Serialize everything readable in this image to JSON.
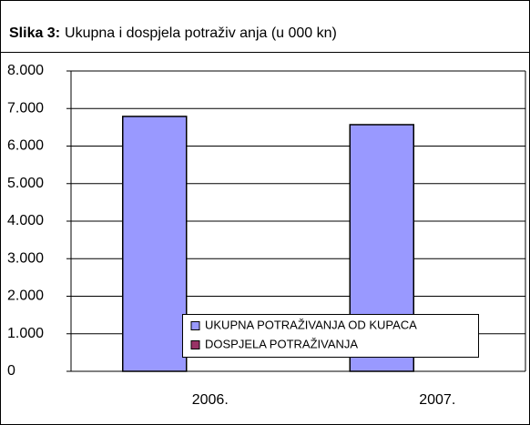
{
  "chart_data": {
    "type": "bar",
    "title_label": "Slika 3:",
    "title": "Ukupna i dospjela potraživ anja (u 000 kn)",
    "categories": [
      "2006.",
      "2007."
    ],
    "series": [
      {
        "name": "UKUPNA POTRAŽIVANJA OD KUPACA",
        "color": "#9999ff",
        "values": [
          6790,
          6570
        ]
      },
      {
        "name": "DOSPJELA POTRAŽIVANJA",
        "color": "#993366",
        "values": [
          0,
          0
        ]
      }
    ],
    "ylim": [
      0,
      8000
    ],
    "yticks": [
      0,
      {
        "value": 1000,
        "label": "1.000"
      },
      {
        "value": 2000,
        "label": "2.000"
      },
      {
        "value": 3000,
        "label": "3.000"
      },
      {
        "value": 4000,
        "label": "4.000"
      },
      {
        "value": 5000,
        "label": "5.000"
      },
      {
        "value": 6000,
        "label": "6.000"
      },
      {
        "value": 7000,
        "label": "7.000"
      },
      {
        "value": 8000,
        "label": "8.000"
      }
    ],
    "grid": true
  }
}
